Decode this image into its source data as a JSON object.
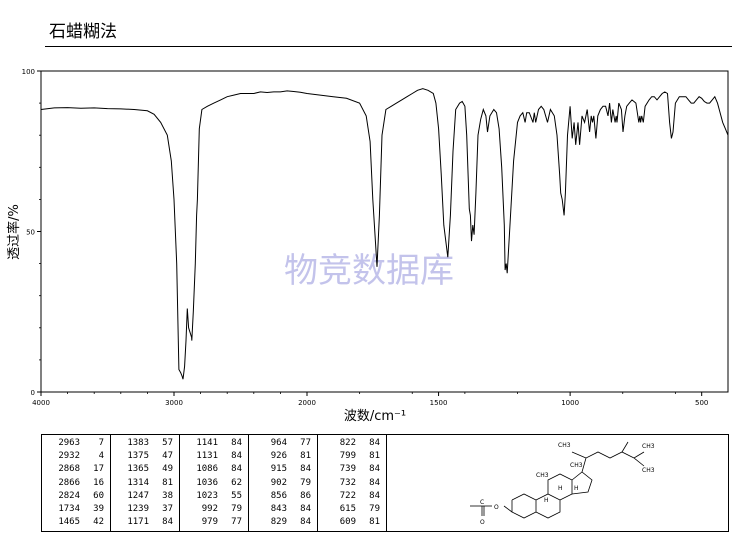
{
  "header": {
    "title": "石蜡糊法"
  },
  "watermark": "物竞数据库",
  "chart_data": {
    "type": "line",
    "title": "",
    "xlabel": "波数/cm⁻¹",
    "ylabel": "透过率/%",
    "xlim": [
      4000,
      400
    ],
    "ylim": [
      0,
      100
    ],
    "x_ticks": [
      "4000",
      "3000",
      "2000",
      "1500",
      "1000",
      "500"
    ],
    "y_ticks": [
      "0",
      "50",
      "100"
    ],
    "series": [
      {
        "points": [
          [
            4000,
            88
          ],
          [
            3900,
            88.5
          ],
          [
            3800,
            88.6
          ],
          [
            3700,
            88.4
          ],
          [
            3600,
            88.5
          ],
          [
            3500,
            88.3
          ],
          [
            3400,
            88.2
          ],
          [
            3300,
            88.0
          ],
          [
            3200,
            87.6
          ],
          [
            3150,
            86.5
          ],
          [
            3100,
            84
          ],
          [
            3050,
            80
          ],
          [
            3020,
            72
          ],
          [
            3000,
            60
          ],
          [
            2980,
            40
          ],
          [
            2963,
            7
          ],
          [
            2950,
            6
          ],
          [
            2940,
            5
          ],
          [
            2932,
            4
          ],
          [
            2920,
            8
          ],
          [
            2910,
            16
          ],
          [
            2900,
            26
          ],
          [
            2890,
            20
          ],
          [
            2868,
            17
          ],
          [
            2866,
            16
          ],
          [
            2855,
            25
          ],
          [
            2840,
            40
          ],
          [
            2830,
            55
          ],
          [
            2824,
            60
          ],
          [
            2810,
            82
          ],
          [
            2790,
            88
          ],
          [
            2750,
            89
          ],
          [
            2700,
            90
          ],
          [
            2650,
            91
          ],
          [
            2600,
            92
          ],
          [
            2550,
            92.5
          ],
          [
            2500,
            93
          ],
          [
            2450,
            93
          ],
          [
            2400,
            93
          ],
          [
            2350,
            93.5
          ],
          [
            2300,
            93.3
          ],
          [
            2250,
            93.5
          ],
          [
            2200,
            93.5
          ],
          [
            2150,
            93.8
          ],
          [
            2100,
            93.6
          ],
          [
            2050,
            93.4
          ],
          [
            2000,
            93
          ],
          [
            1950,
            92.5
          ],
          [
            1900,
            92
          ],
          [
            1850,
            91.5
          ],
          [
            1800,
            90
          ],
          [
            1775,
            86
          ],
          [
            1760,
            78
          ],
          [
            1750,
            60
          ],
          [
            1734,
            39
          ],
          [
            1725,
            55
          ],
          [
            1715,
            80
          ],
          [
            1700,
            88
          ],
          [
            1680,
            89
          ],
          [
            1660,
            90
          ],
          [
            1640,
            91
          ],
          [
            1620,
            92
          ],
          [
            1600,
            93
          ],
          [
            1580,
            94
          ],
          [
            1560,
            94.5
          ],
          [
            1540,
            94
          ],
          [
            1520,
            93
          ],
          [
            1510,
            90
          ],
          [
            1500,
            82
          ],
          [
            1490,
            68
          ],
          [
            1480,
            52
          ],
          [
            1465,
            42
          ],
          [
            1455,
            55
          ],
          [
            1445,
            75
          ],
          [
            1435,
            88
          ],
          [
            1420,
            90
          ],
          [
            1410,
            90.5
          ],
          [
            1400,
            89
          ],
          [
            1393,
            80
          ],
          [
            1383,
            57
          ],
          [
            1379,
            55
          ],
          [
            1375,
            47
          ],
          [
            1370,
            52
          ],
          [
            1365,
            49
          ],
          [
            1358,
            62
          ],
          [
            1350,
            80
          ],
          [
            1340,
            85
          ],
          [
            1330,
            88
          ],
          [
            1320,
            86
          ],
          [
            1314,
            81
          ],
          [
            1305,
            86
          ],
          [
            1290,
            88
          ],
          [
            1280,
            87
          ],
          [
            1270,
            82
          ],
          [
            1260,
            70
          ],
          [
            1250,
            52
          ],
          [
            1247,
            38
          ],
          [
            1243,
            40
          ],
          [
            1239,
            37
          ],
          [
            1230,
            50
          ],
          [
            1215,
            72
          ],
          [
            1200,
            84
          ],
          [
            1190,
            86
          ],
          [
            1180,
            87
          ],
          [
            1171,
            84
          ],
          [
            1165,
            87
          ],
          [
            1155,
            87
          ],
          [
            1141,
            84
          ],
          [
            1136,
            87
          ],
          [
            1131,
            84
          ],
          [
            1120,
            88
          ],
          [
            1110,
            89
          ],
          [
            1100,
            88
          ],
          [
            1086,
            84
          ],
          [
            1075,
            88
          ],
          [
            1060,
            86
          ],
          [
            1050,
            80
          ],
          [
            1040,
            68
          ],
          [
            1036,
            62
          ],
          [
            1030,
            60
          ],
          [
            1023,
            55
          ],
          [
            1018,
            62
          ],
          [
            1010,
            80
          ],
          [
            1000,
            89
          ],
          [
            992,
            79
          ],
          [
            985,
            84
          ],
          [
            979,
            77
          ],
          [
            970,
            84
          ],
          [
            964,
            77
          ],
          [
            955,
            86
          ],
          [
            945,
            84
          ],
          [
            935,
            88
          ],
          [
            926,
            81
          ],
          [
            920,
            86
          ],
          [
            915,
            84
          ],
          [
            910,
            86
          ],
          [
            902,
            79
          ],
          [
            895,
            86
          ],
          [
            885,
            88
          ],
          [
            875,
            89
          ],
          [
            865,
            89
          ],
          [
            856,
            86
          ],
          [
            850,
            90
          ],
          [
            843,
            84
          ],
          [
            838,
            88
          ],
          [
            829,
            84
          ],
          [
            825,
            86
          ],
          [
            822,
            84
          ],
          [
            815,
            90
          ],
          [
            805,
            88
          ],
          [
            799,
            81
          ],
          [
            792,
            86
          ],
          [
            785,
            89
          ],
          [
            775,
            90
          ],
          [
            765,
            91
          ],
          [
            750,
            90
          ],
          [
            739,
            84
          ],
          [
            735,
            86
          ],
          [
            732,
            84
          ],
          [
            728,
            86
          ],
          [
            722,
            84
          ],
          [
            715,
            89
          ],
          [
            700,
            91
          ],
          [
            690,
            92
          ],
          [
            680,
            92
          ],
          [
            670,
            91
          ],
          [
            660,
            92
          ],
          [
            650,
            93
          ],
          [
            640,
            93.5
          ],
          [
            630,
            93
          ],
          [
            622,
            84
          ],
          [
            615,
            79
          ],
          [
            612,
            80
          ],
          [
            609,
            81
          ],
          [
            600,
            90
          ],
          [
            585,
            92
          ],
          [
            570,
            92
          ],
          [
            560,
            92
          ],
          [
            550,
            91
          ],
          [
            540,
            90
          ],
          [
            530,
            90
          ],
          [
            520,
            91
          ],
          [
            510,
            92
          ],
          [
            500,
            91.5
          ],
          [
            490,
            90.5
          ],
          [
            480,
            90
          ],
          [
            470,
            90
          ],
          [
            460,
            91
          ],
          [
            450,
            92
          ],
          [
            440,
            90
          ],
          [
            430,
            87
          ],
          [
            420,
            84
          ],
          [
            410,
            82
          ],
          [
            400,
            80
          ]
        ]
      }
    ]
  },
  "peaks": [
    [
      [
        "2963",
        "7"
      ],
      [
        "2932",
        "4"
      ],
      [
        "2868",
        "17"
      ],
      [
        "2866",
        "16"
      ],
      [
        "2824",
        "60"
      ],
      [
        "1734",
        "39"
      ],
      [
        "1465",
        "42"
      ]
    ],
    [
      [
        "1383",
        "57"
      ],
      [
        "1375",
        "47"
      ],
      [
        "1365",
        "49"
      ],
      [
        "1314",
        "81"
      ],
      [
        "1247",
        "38"
      ],
      [
        "1239",
        "37"
      ],
      [
        "1171",
        "84"
      ]
    ],
    [
      [
        "1141",
        "84"
      ],
      [
        "1131",
        "84"
      ],
      [
        "1086",
        "84"
      ],
      [
        "1036",
        "62"
      ],
      [
        "1023",
        "55"
      ],
      [
        "992",
        "79"
      ],
      [
        "979",
        "77"
      ]
    ],
    [
      [
        "964",
        "77"
      ],
      [
        "926",
        "81"
      ],
      [
        "915",
        "84"
      ],
      [
        "902",
        "79"
      ],
      [
        "856",
        "86"
      ],
      [
        "843",
        "84"
      ],
      [
        "829",
        "84"
      ]
    ],
    [
      [
        "822",
        "84"
      ],
      [
        "799",
        "81"
      ],
      [
        "739",
        "84"
      ],
      [
        "732",
        "84"
      ],
      [
        "722",
        "84"
      ],
      [
        "615",
        "79"
      ],
      [
        "609",
        "81"
      ]
    ]
  ],
  "structure": {
    "labels": [
      "CH3",
      "CH3",
      "CH3",
      "CH3",
      "H",
      "H",
      "H",
      "CH3",
      "C",
      "O",
      "O"
    ]
  }
}
